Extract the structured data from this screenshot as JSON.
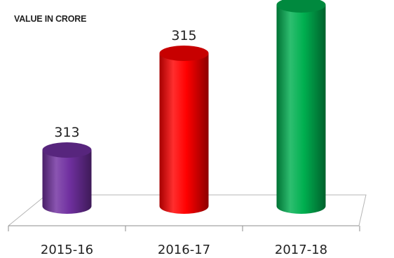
{
  "chart_data": {
    "type": "bar",
    "title": "VALUE IN CRORE",
    "categories": [
      "2015-16",
      "2016-17",
      "2017-18"
    ],
    "values": [
      313,
      315,
      316
    ],
    "xlabel": "",
    "ylabel": "",
    "grid": false,
    "legend": "none",
    "bar_colors": [
      "#7030a0",
      "#ff0000",
      "#00b050"
    ],
    "bar_style": "3d-cylinder"
  }
}
